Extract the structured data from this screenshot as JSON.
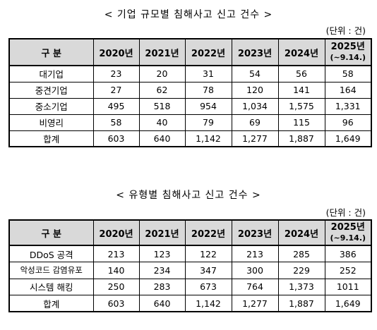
{
  "table1": {
    "title": "< 기업 규모별 침해사고 신고 건수 >",
    "unit": "(단위 : 건)",
    "headers": [
      "구 분",
      "2020년",
      "2021년",
      "2022년",
      "2023년",
      "2024년",
      "2025년",
      "(~9.14.)"
    ],
    "rows": [
      [
        "대기업",
        "23",
        "20",
        "31",
        "54",
        "56",
        "58"
      ],
      [
        "중견기업",
        "27",
        "62",
        "78",
        "120",
        "141",
        "164"
      ],
      [
        "중소기업",
        "495",
        "518",
        "954",
        "1,034",
        "1,575",
        "1,331"
      ],
      [
        "비영리",
        "58",
        "40",
        "79",
        "69",
        "115",
        "96"
      ],
      [
        "합계",
        "603",
        "640",
        "1,142",
        "1,277",
        "1,887",
        "1,649"
      ]
    ]
  },
  "table2": {
    "title": "< 유형별 침해사고 신고 건수 >",
    "unit": "(단위 : 건)",
    "headers": [
      "구 분",
      "2020년",
      "2021년",
      "2022년",
      "2023년",
      "2024년",
      "2025년",
      "(~9.14.)"
    ],
    "rows": [
      [
        "DDoS 공격",
        "213",
        "123",
        "122",
        "213",
        "285",
        "386"
      ],
      [
        "악성코드 감염유포",
        "140",
        "234",
        "347",
        "300",
        "229",
        "252"
      ],
      [
        "시스템 해킹",
        "250",
        "283",
        "673",
        "764",
        "1,373",
        "1011"
      ],
      [
        "합계",
        "603",
        "640",
        "1,142",
        "1,277",
        "1,887",
        "1,649"
      ]
    ]
  }
}
